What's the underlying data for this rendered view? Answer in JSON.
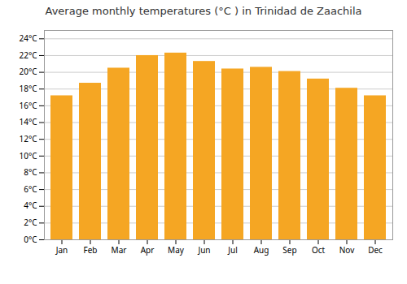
{
  "chart_data": {
    "type": "bar",
    "title": "Average monthly temperatures (°C ) in Trinidad de Zaachila",
    "categories": [
      "Jan",
      "Feb",
      "Mar",
      "Apr",
      "May",
      "Jun",
      "Jul",
      "Aug",
      "Sep",
      "Oct",
      "Nov",
      "Dec"
    ],
    "values": [
      17.2,
      18.7,
      20.5,
      22.0,
      22.3,
      21.3,
      20.4,
      20.6,
      20.1,
      19.2,
      18.1,
      17.2
    ],
    "color": "#F5A623",
    "ylim": [
      0,
      25
    ],
    "yticks": [
      {
        "value": 0,
        "label": "0°C"
      },
      {
        "value": 2,
        "label": "2°C"
      },
      {
        "value": 4,
        "label": "4°C"
      },
      {
        "value": 6,
        "label": "6°C"
      },
      {
        "value": 8,
        "label": "8°C"
      },
      {
        "value": 10,
        "label": "10°C"
      },
      {
        "value": 12,
        "label": "12°C"
      },
      {
        "value": 14,
        "label": "14°C"
      },
      {
        "value": 16,
        "label": "16°C"
      },
      {
        "value": 18,
        "label": "18°C"
      },
      {
        "value": 20,
        "label": "20°C"
      },
      {
        "value": 22,
        "label": "22°C"
      },
      {
        "value": 24,
        "label": "24°C"
      }
    ],
    "grid": true
  }
}
